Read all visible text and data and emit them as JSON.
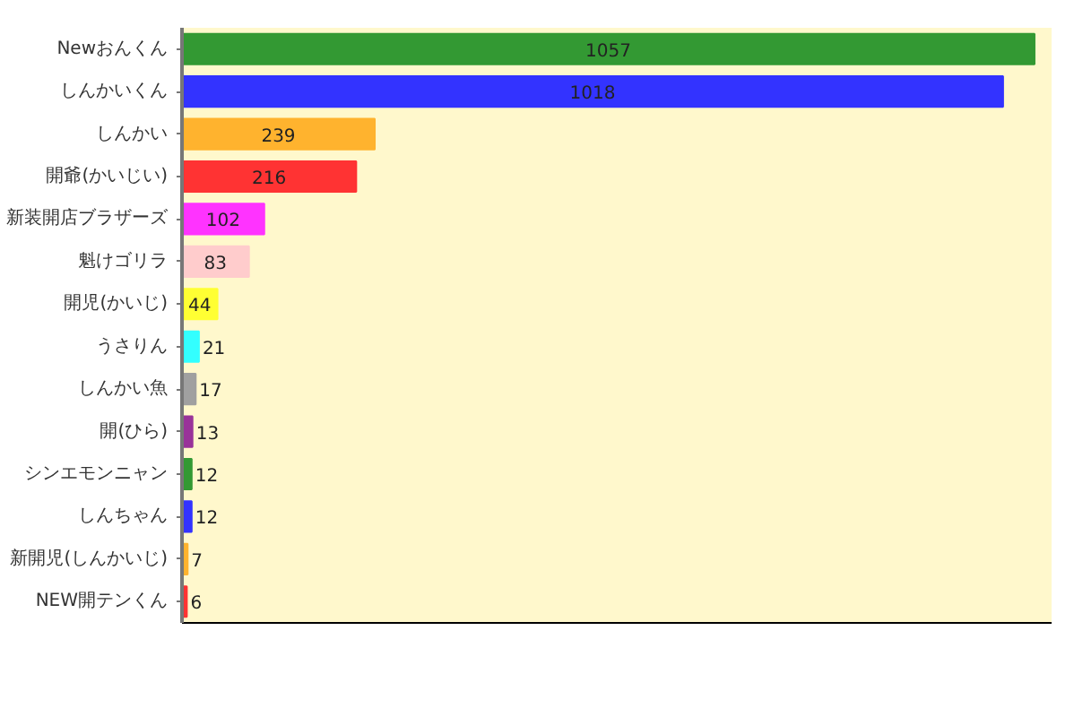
{
  "chart_data": {
    "type": "bar",
    "orientation": "horizontal",
    "categories": [
      "Newおんくん",
      "しんかいくん",
      "しんかい",
      "開爺(かいじい)",
      "新装開店ブラザーズ",
      "魁けゴリラ",
      "開児(かいじ)",
      "うさりん",
      "しんかい魚",
      "開(ひら)",
      "シンエモンニャン",
      "しんちゃん",
      "新開児(しんかいじ)",
      "NEW開テンくん"
    ],
    "values": [
      1057,
      1018,
      239,
      216,
      102,
      83,
      44,
      21,
      17,
      13,
      12,
      12,
      7,
      6
    ],
    "colors": [
      "#339933",
      "#3333ff",
      "#ffb32e",
      "#ff3333",
      "#ff33ff",
      "#ffcccc",
      "#ffff33",
      "#33ffff",
      "#a0a0a0",
      "#993399",
      "#339933",
      "#3333ff",
      "#ffb32e",
      "#ff3333"
    ],
    "data_labels": true,
    "tick_labels": "y"
  }
}
